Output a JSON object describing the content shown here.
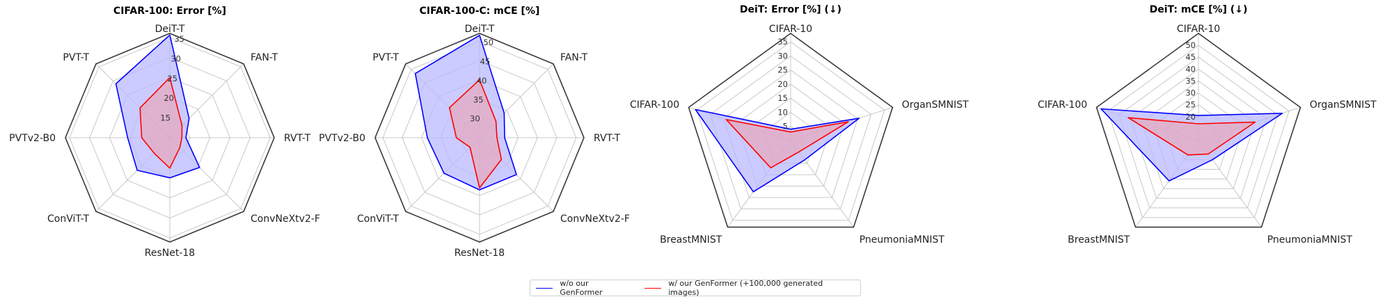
{
  "legend": {
    "items": [
      {
        "label": "w/o our GenFormer",
        "color": "#0000ff"
      },
      {
        "label": "w/ our GenFormer (+100,000 generated images)",
        "color": "#ff0000"
      }
    ]
  },
  "colors": {
    "without": "#0000ff",
    "with": "#ff0000",
    "fill_without": "#b9b9ff",
    "fill_with": "#f0a0a8"
  },
  "chart_data": [
    {
      "type": "radar",
      "title": "CIFAR-100: Error [%]",
      "axes": [
        "DeiT-T",
        "FAN-T",
        "RVT-T",
        "ConvNeXtv2-F",
        "ResNet-18",
        "ConViT-T",
        "PVTv2-B0",
        "PVT-T"
      ],
      "rlim": [
        10,
        36
      ],
      "ticks": [
        15,
        20,
        25,
        30,
        35
      ],
      "grid": true,
      "series": [
        {
          "name": "w/o our GenFormer",
          "values": [
            35.6,
            16.8,
            14.0,
            20.5,
            20.0,
            21.5,
            20.5,
            29.0
          ]
        },
        {
          "name": "w/ our GenFormer (+100,000 generated images)",
          "values": [
            25.0,
            14.3,
            13.0,
            13.5,
            17.6,
            15.5,
            17.0,
            20.5
          ]
        }
      ]
    },
    {
      "type": "radar",
      "title": "CIFAR-100-C: mCE [%]",
      "axes": [
        "DeiT-T",
        "FAN-T",
        "RVT-T",
        "ConvNeXtv2-F",
        "ResNet-18",
        "ConViT-T",
        "PVTv2-B0",
        "PVT-T"
      ],
      "rlim": [
        25,
        52
      ],
      "ticks": [
        30,
        35,
        40,
        45,
        50
      ],
      "grid": true,
      "series": [
        {
          "name": "w/o our GenFormer",
          "values": [
            51.5,
            34.0,
            31.5,
            38.5,
            38.5,
            38.0,
            38.5,
            48.5
          ]
        },
        {
          "name": "w/ our GenFormer (+100,000 generated images)",
          "values": [
            40.0,
            31.0,
            29.5,
            33.0,
            38.0,
            28.5,
            31.0,
            36.0
          ]
        }
      ]
    },
    {
      "type": "radar",
      "title": "DeiT: Error [%] (↓)",
      "axes": [
        "CIFAR-10",
        "OrganSMNIST",
        "PneumoniaMNIST",
        "BreastMNIST",
        "CIFAR-100"
      ],
      "rlim": [
        0,
        38
      ],
      "ticks": [
        5,
        10,
        15,
        20,
        25,
        30,
        35
      ],
      "grid": true,
      "series": [
        {
          "name": "w/o our GenFormer",
          "values": [
            4.0,
            25.5,
            8.5,
            22.5,
            35.5
          ]
        },
        {
          "name": "w/ our GenFormer (+100,000 generated images)",
          "values": [
            3.0,
            21.5,
            5.0,
            12.0,
            24.0
          ]
        }
      ]
    },
    {
      "type": "radar",
      "title": "DeiT: mCE [%] (↓)",
      "axes": [
        "CIFAR-10",
        "OrganSMNIST",
        "PneumoniaMNIST",
        "BreastMNIST",
        "CIFAR-100"
      ],
      "rlim": [
        10,
        55
      ],
      "ticks": [
        20,
        25,
        30,
        35,
        40,
        45,
        50
      ],
      "grid": true,
      "series": [
        {
          "name": "w/o our GenFormer",
          "values": [
            20.5,
            47.0,
            20.0,
            31.0,
            53.0
          ]
        },
        {
          "name": "w/ our GenFormer (+100,000 generated images)",
          "values": [
            17.0,
            35.0,
            17.0,
            17.5,
            41.0
          ]
        }
      ]
    }
  ]
}
